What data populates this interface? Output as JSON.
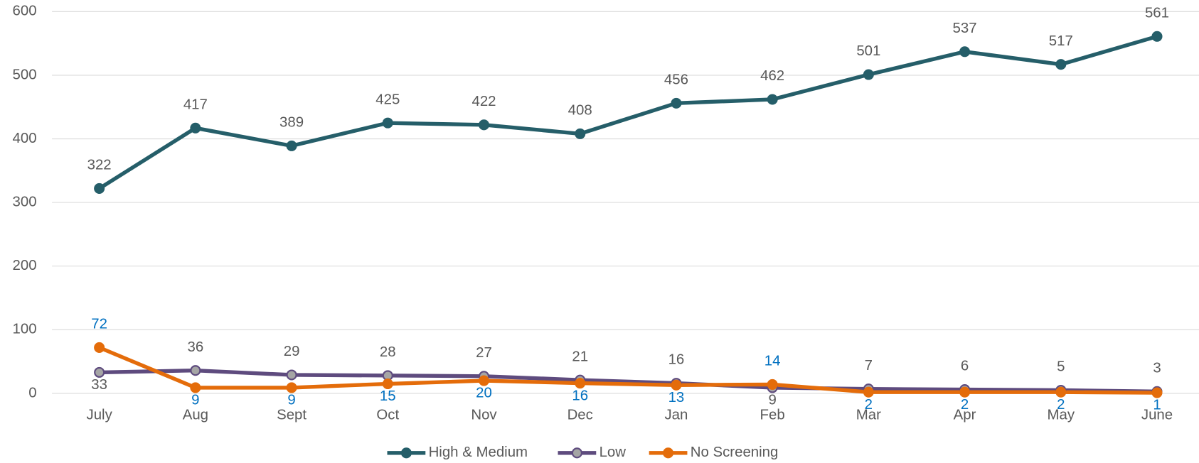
{
  "chart_data": {
    "type": "line",
    "categories": [
      "July",
      "Aug",
      "Sept",
      "Oct",
      "Nov",
      "Dec",
      "Jan",
      "Feb",
      "Mar",
      "Apr",
      "May",
      "June"
    ],
    "series": [
      {
        "name": "High & Medium",
        "color": "#255e69",
        "marker_fill": "#255e69",
        "label_color": "#595959",
        "values": [
          322,
          417,
          389,
          425,
          422,
          408,
          456,
          462,
          501,
          537,
          517,
          561
        ]
      },
      {
        "name": "Low",
        "color": "#5e4b7e",
        "marker_fill": "#a5a5a5",
        "label_color": "#595959",
        "values": [
          33,
          36,
          29,
          28,
          27,
          21,
          16,
          9,
          7,
          6,
          5,
          3
        ]
      },
      {
        "name": "No Screening",
        "color": "#e46c0a",
        "marker_fill": "#e46c0a",
        "label_color": "#0070c0",
        "values": [
          72,
          9,
          9,
          15,
          20,
          16,
          13,
          14,
          2,
          2,
          2,
          1
        ]
      }
    ],
    "ylim": [
      0,
      600
    ],
    "yticks": [
      0,
      100,
      200,
      300,
      400,
      500,
      600
    ],
    "grid": true,
    "legend": "bottom"
  }
}
